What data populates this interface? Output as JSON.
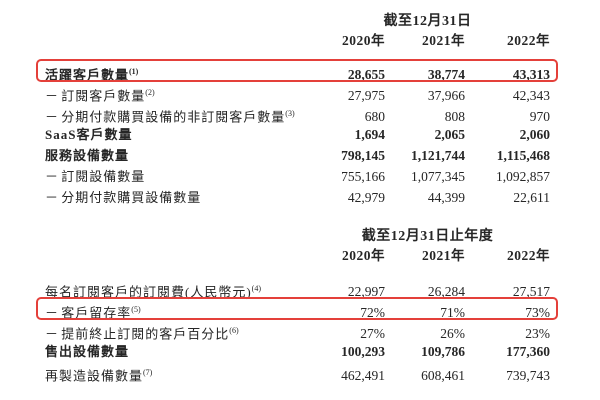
{
  "colors": {
    "accent_red": "#e4403a",
    "text": "#262626",
    "background": "#ffffff"
  },
  "dash_prefix": "－ ",
  "table1": {
    "period_header": "截至12月31日",
    "years": [
      "2020年",
      "2021年",
      "2022年"
    ],
    "rows": [
      {
        "label": "活躍客戶數量",
        "note": "(1)",
        "values": [
          "28,655",
          "38,774",
          "43,313"
        ],
        "bold": true,
        "dash": false,
        "highlight": true
      },
      {
        "label": "訂閱客戶數量",
        "note": "(2)",
        "values": [
          "27,975",
          "37,966",
          "42,343"
        ],
        "bold": false,
        "dash": true,
        "highlight": false
      },
      {
        "label": "分期付款購買設備的非訂閱客戶數量",
        "note": "(3)",
        "values": [
          "680",
          "808",
          "970"
        ],
        "bold": false,
        "dash": true,
        "highlight": false
      },
      {
        "label": "SaaS客戶數量",
        "note": "",
        "values": [
          "1,694",
          "2,065",
          "2,060"
        ],
        "bold": true,
        "dash": false,
        "highlight": false
      },
      {
        "label": "服務設備數量",
        "note": "",
        "values": [
          "798,145",
          "1,121,744",
          "1,115,468"
        ],
        "bold": true,
        "dash": false,
        "highlight": false
      },
      {
        "label": "訂閱設備數量",
        "note": "",
        "values": [
          "755,166",
          "1,077,345",
          "1,092,857"
        ],
        "bold": false,
        "dash": true,
        "highlight": false
      },
      {
        "label": "分期付款購買設備數量",
        "note": "",
        "values": [
          "42,979",
          "44,399",
          "22,611"
        ],
        "bold": false,
        "dash": true,
        "highlight": false
      }
    ]
  },
  "table2": {
    "period_header": "截至12月31日止年度",
    "years": [
      "2020年",
      "2021年",
      "2022年"
    ],
    "rows": [
      {
        "label": "每名訂閱客戶的訂閱費(人民幣元)",
        "note": "(4)",
        "values": [
          "22,997",
          "26,284",
          "27,517"
        ],
        "bold": false,
        "dash": false,
        "highlight": false
      },
      {
        "label": "客戶留存率",
        "note": "(5)",
        "values": [
          "72%",
          "71%",
          "73%"
        ],
        "bold": false,
        "dash": true,
        "highlight": true
      },
      {
        "label": "提前終止訂閱的客戶百分比",
        "note": "(6)",
        "values": [
          "27%",
          "26%",
          "23%"
        ],
        "bold": false,
        "dash": true,
        "highlight": false
      },
      {
        "label": "售出設備數量",
        "note": "",
        "values": [
          "100,293",
          "109,786",
          "177,360"
        ],
        "bold": true,
        "dash": false,
        "highlight": false
      },
      {
        "label": "再製造設備數量",
        "note": "(7)",
        "values": [
          "462,491",
          "608,461",
          "739,743"
        ],
        "bold": false,
        "dash": false,
        "highlight": false
      }
    ]
  }
}
